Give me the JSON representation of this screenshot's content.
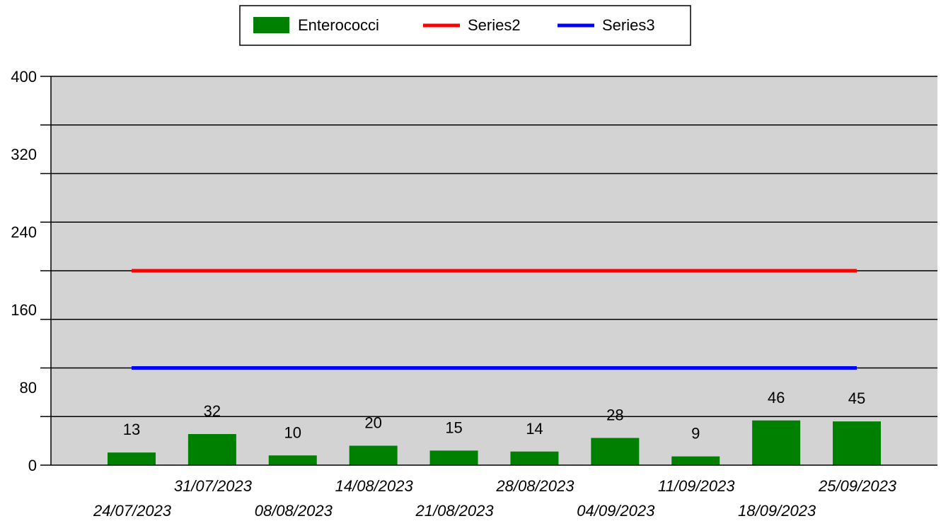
{
  "chart_data": {
    "type": "bar",
    "categories": [
      "24/07/2023",
      "31/07/2023",
      "08/08/2023",
      "14/08/2023",
      "21/08/2023",
      "28/08/2023",
      "04/09/2023",
      "11/09/2023",
      "18/09/2023",
      "25/09/2023"
    ],
    "series": [
      {
        "name": "Enterococci",
        "kind": "bar",
        "values": [
          13,
          32,
          10,
          20,
          15,
          14,
          28,
          9,
          46,
          45
        ],
        "color": "#008000"
      },
      {
        "name": "Series2",
        "kind": "line",
        "values": [
          200,
          200,
          200,
          200,
          200,
          200,
          200,
          200,
          200,
          200
        ],
        "color": "#ff0000"
      },
      {
        "name": "Series3",
        "kind": "line",
        "values": [
          100,
          100,
          100,
          100,
          100,
          100,
          100,
          100,
          100,
          100
        ],
        "color": "#0000ff"
      }
    ],
    "ylim": [
      0,
      400
    ],
    "yticks": [
      0,
      80,
      160,
      240,
      320,
      400
    ],
    "gridlines": [
      50,
      100,
      150,
      200,
      250,
      300,
      350,
      400
    ],
    "grid": true,
    "legend": "top-center",
    "plot_background": "#d3d3d3",
    "title": "",
    "xlabel": "",
    "ylabel": ""
  }
}
